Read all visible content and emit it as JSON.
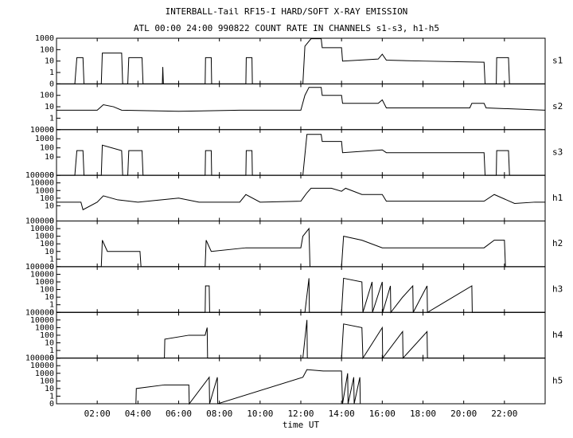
{
  "chart_data": {
    "type": "line",
    "title": "INTERBALL-Tail RF15-I HARD/SOFT X-RAY EMISSION",
    "subtitle": "ATL 00:00 24:00 990822  COUNT RATE IN CHANNELS s1-s3, h1-h5",
    "x_label": "time UT",
    "xlim": [
      0,
      24
    ],
    "xticks": [
      {
        "value": 2,
        "label": "02:00"
      },
      {
        "value": 4,
        "label": "04:00"
      },
      {
        "value": 6,
        "label": "06:00"
      },
      {
        "value": 8,
        "label": "08:00"
      },
      {
        "value": 10,
        "label": "10:00"
      },
      {
        "value": 12,
        "label": "12:00"
      },
      {
        "value": 14,
        "label": "14:00"
      },
      {
        "value": 16,
        "label": "16:00"
      },
      {
        "value": 18,
        "label": "18:00"
      },
      {
        "value": 20,
        "label": "20:00"
      },
      {
        "value": 22,
        "label": "22:00"
      }
    ],
    "yscale": "symlog",
    "color": "#000000",
    "panels": [
      {
        "name": "s1",
        "ylim": [
          0,
          1000
        ],
        "yticks": [
          0,
          1,
          10,
          100,
          1000
        ],
        "x": [
          0,
          0.9,
          1,
          1.3,
          1.35,
          2.2,
          2.25,
          3.2,
          3.25,
          3.5,
          3.55,
          4.2,
          4.25,
          5.2,
          5.22,
          5.25,
          7.3,
          7.32,
          7.6,
          7.62,
          9.3,
          9.32,
          9.6,
          9.62,
          12.1,
          12.2,
          12.5,
          13,
          13.05,
          14,
          14.05,
          15.8,
          16,
          16.2,
          18,
          21,
          21.05,
          21.6,
          21.62,
          22.2,
          22.25,
          24
        ],
        "values": [
          0,
          0,
          20,
          20,
          0,
          0,
          50,
          50,
          0,
          0,
          20,
          20,
          0,
          0,
          3,
          0,
          0,
          20,
          20,
          0,
          0,
          20,
          20,
          0,
          0,
          200,
          900,
          900,
          150,
          150,
          10,
          15,
          40,
          12,
          10,
          8,
          0,
          0,
          20,
          20,
          0,
          0
        ]
      },
      {
        "name": "s2",
        "ylim": [
          0,
          1000
        ],
        "yticks": [
          0,
          1,
          10,
          100
        ],
        "x": [
          0,
          2,
          2.3,
          2.8,
          3.2,
          6,
          9,
          12,
          12.2,
          12.4,
          13,
          13.05,
          14,
          14.05,
          15.8,
          16,
          16.2,
          20.3,
          20.4,
          21,
          21.1,
          24
        ],
        "values": [
          5,
          5,
          15,
          10,
          5,
          4,
          5,
          5,
          100,
          500,
          500,
          100,
          100,
          20,
          20,
          40,
          8,
          8,
          20,
          20,
          8,
          5
        ]
      },
      {
        "name": "s3",
        "ylim": [
          0,
          10000
        ],
        "yticks": [
          0,
          10,
          100,
          1000,
          10000
        ],
        "x": [
          0,
          0.9,
          1,
          1.3,
          1.35,
          2.2,
          2.25,
          3.2,
          3.25,
          3.5,
          3.55,
          4.2,
          4.25,
          7.3,
          7.32,
          7.6,
          7.62,
          9.3,
          9.32,
          9.6,
          9.62,
          12.1,
          12.3,
          13,
          13.05,
          14,
          14.05,
          16,
          16.2,
          21,
          21.05,
          21.6,
          21.62,
          22.2,
          22.25,
          24
        ],
        "values": [
          0,
          0,
          50,
          50,
          0,
          0,
          200,
          50,
          0,
          0,
          50,
          50,
          0,
          0,
          50,
          50,
          0,
          0,
          50,
          50,
          0,
          0,
          3000,
          3000,
          500,
          500,
          30,
          60,
          30,
          30,
          0,
          0,
          50,
          50,
          0,
          0
        ]
      },
      {
        "name": "h1",
        "ylim": [
          0,
          100000
        ],
        "yticks": [
          0,
          10,
          100,
          1000,
          10000,
          100000
        ],
        "x": [
          0,
          1.2,
          1.3,
          2,
          2.3,
          3,
          4,
          6,
          7,
          9,
          9.3,
          10,
          12,
          12.3,
          12.5,
          13.5,
          14,
          14.2,
          15,
          16,
          16.2,
          18,
          21,
          21.5,
          22.5,
          23.5,
          24
        ],
        "values": [
          30,
          30,
          3,
          30,
          200,
          60,
          30,
          100,
          30,
          30,
          300,
          30,
          40,
          500,
          2000,
          2000,
          800,
          2000,
          300,
          300,
          40,
          40,
          40,
          300,
          20,
          30,
          30
        ]
      },
      {
        "name": "h2",
        "ylim": [
          0,
          100000
        ],
        "yticks": [
          0,
          1,
          10,
          100,
          1000,
          10000,
          100000
        ],
        "x": [
          0,
          2.2,
          2.25,
          2.5,
          4.1,
          4.15,
          7.3,
          7.35,
          7.6,
          9.3,
          12,
          12.1,
          12.4,
          12.45,
          14,
          14.1,
          15,
          16,
          18,
          20,
          21,
          21.5,
          22,
          22.05,
          24
        ],
        "values": [
          0,
          0,
          300,
          10,
          10,
          0,
          0,
          300,
          10,
          30,
          30,
          1000,
          10000,
          0,
          0,
          1000,
          300,
          30,
          30,
          30,
          30,
          300,
          300,
          0,
          0
        ]
      },
      {
        "name": "h3",
        "ylim": [
          0,
          100000
        ],
        "yticks": [
          0,
          1,
          10,
          100,
          1000,
          10000,
          100000
        ],
        "x": [
          0,
          7.3,
          7.32,
          7.5,
          7.52,
          12.2,
          12.4,
          12.42,
          14,
          14.1,
          15,
          15.05,
          15.5,
          15.52,
          16,
          16.02,
          16.4,
          16.42,
          17,
          17.5,
          17.52,
          18.2,
          18.22,
          20.4,
          20.42,
          24
        ],
        "values": [
          0,
          0,
          300,
          300,
          0,
          0,
          3000,
          0,
          0,
          3000,
          1000,
          0,
          1000,
          0,
          1000,
          0,
          300,
          0,
          10,
          300,
          0,
          300,
          0,
          300,
          0,
          0
        ]
      },
      {
        "name": "h4",
        "ylim": [
          0,
          100000
        ],
        "yticks": [
          0,
          1,
          10,
          100,
          1000,
          10000,
          100000
        ],
        "x": [
          0,
          5.3,
          5.32,
          6.5,
          7.3,
          7.4,
          7.42,
          12.1,
          12.3,
          12.32,
          14,
          14.1,
          15,
          15.05,
          16,
          16.02,
          17,
          17.02,
          18.2,
          18.22,
          24
        ],
        "values": [
          0,
          0,
          30,
          100,
          100,
          1000,
          0,
          0,
          10000,
          0,
          0,
          3000,
          1000,
          0,
          1000,
          0,
          300,
          0,
          300,
          0,
          0
        ]
      },
      {
        "name": "h5",
        "ylim": [
          0,
          100000
        ],
        "yticks": [
          0,
          1,
          10,
          100,
          1000,
          10000,
          100000
        ],
        "x": [
          0,
          3.9,
          3.92,
          5.3,
          6.5,
          6.52,
          7.5,
          7.52,
          7.9,
          7.92,
          12.1,
          12.3,
          13.1,
          14,
          14.05,
          14.3,
          14.32,
          14.6,
          14.62,
          14.9,
          14.92,
          24
        ],
        "values": [
          0,
          0,
          10,
          30,
          30,
          0,
          300,
          0,
          300,
          0,
          300,
          3000,
          2000,
          2000,
          0,
          1000,
          0,
          300,
          0,
          300,
          0,
          0
        ]
      }
    ]
  }
}
